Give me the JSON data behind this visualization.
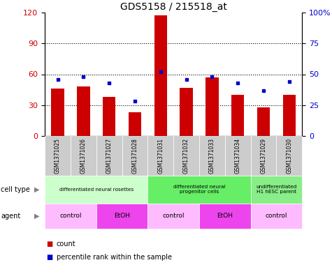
{
  "title": "GDS5158 / 215518_at",
  "samples": [
    "GSM1371025",
    "GSM1371026",
    "GSM1371027",
    "GSM1371028",
    "GSM1371031",
    "GSM1371032",
    "GSM1371033",
    "GSM1371034",
    "GSM1371029",
    "GSM1371030"
  ],
  "counts": [
    46,
    48,
    38,
    23,
    117,
    47,
    57,
    40,
    28,
    40
  ],
  "percentiles": [
    46,
    48,
    43,
    28,
    52,
    46,
    48,
    43,
    37,
    44
  ],
  "ylim_left": [
    0,
    120
  ],
  "ylim_right": [
    0,
    100
  ],
  "yticks_left": [
    0,
    30,
    60,
    90,
    120
  ],
  "yticks_right": [
    0,
    25,
    50,
    75,
    100
  ],
  "ytick_labels_right": [
    "0",
    "25",
    "50",
    "75",
    "100%"
  ],
  "bar_color": "#cc0000",
  "percentile_color": "#0000cc",
  "cell_type_groups": [
    {
      "label": "differentiated neural rosettes",
      "start": 0,
      "end": 4,
      "color": "#ccffcc"
    },
    {
      "label": "differentiated neural\nprogenitor cells",
      "start": 4,
      "end": 8,
      "color": "#66ee66"
    },
    {
      "label": "undifferentiated\nH1 hESC parent",
      "start": 8,
      "end": 10,
      "color": "#88ee88"
    }
  ],
  "agent_groups": [
    {
      "label": "control",
      "start": 0,
      "end": 2,
      "color": "#ffbbff"
    },
    {
      "label": "EtOH",
      "start": 2,
      "end": 4,
      "color": "#ee44ee"
    },
    {
      "label": "control",
      "start": 4,
      "end": 6,
      "color": "#ffbbff"
    },
    {
      "label": "EtOH",
      "start": 6,
      "end": 8,
      "color": "#ee44ee"
    },
    {
      "label": "control",
      "start": 8,
      "end": 10,
      "color": "#ffbbff"
    }
  ],
  "sample_row_color": "#cccccc",
  "cell_type_label": "cell type",
  "agent_label": "agent",
  "legend_count_label": "count",
  "legend_percentile_label": "percentile rank within the sample",
  "gridline_yticks": [
    30,
    60,
    90
  ],
  "bar_width": 0.5
}
